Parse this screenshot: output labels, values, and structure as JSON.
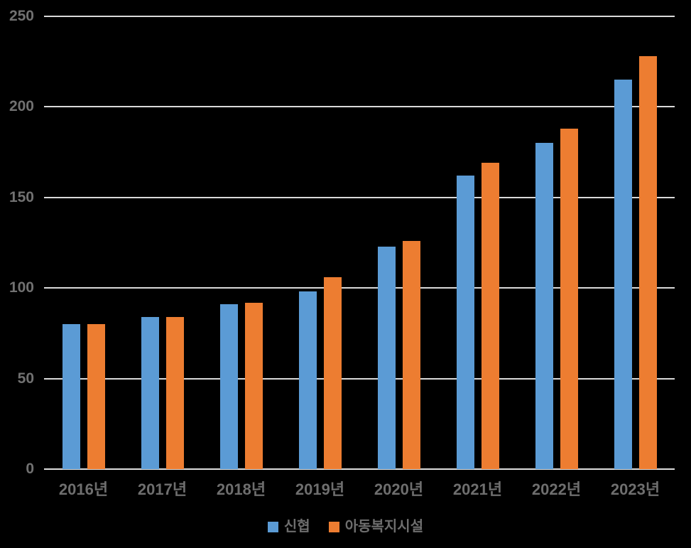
{
  "chart_data": {
    "type": "bar",
    "title": "",
    "categories": [
      "2016년",
      "2017년",
      "2018년",
      "2019년",
      "2020년",
      "2021년",
      "2022년",
      "2023년"
    ],
    "series": [
      {
        "name": "신협",
        "color": "#5B9BD5",
        "values": [
          80,
          84,
          91,
          98,
          123,
          162,
          180,
          215
        ]
      },
      {
        "name": "아동복지시설",
        "color": "#ED7D31",
        "values": [
          80,
          84,
          92,
          106,
          126,
          169,
          188,
          228
        ]
      }
    ],
    "ylim": [
      0,
      250
    ],
    "yticks": [
      0,
      50,
      100,
      150,
      200,
      250
    ],
    "grid": true,
    "legend_position": "bottom",
    "colors": {
      "background": "#000000",
      "gridline": "#D9D9D9",
      "axis_label": "#6E6E6E"
    }
  }
}
